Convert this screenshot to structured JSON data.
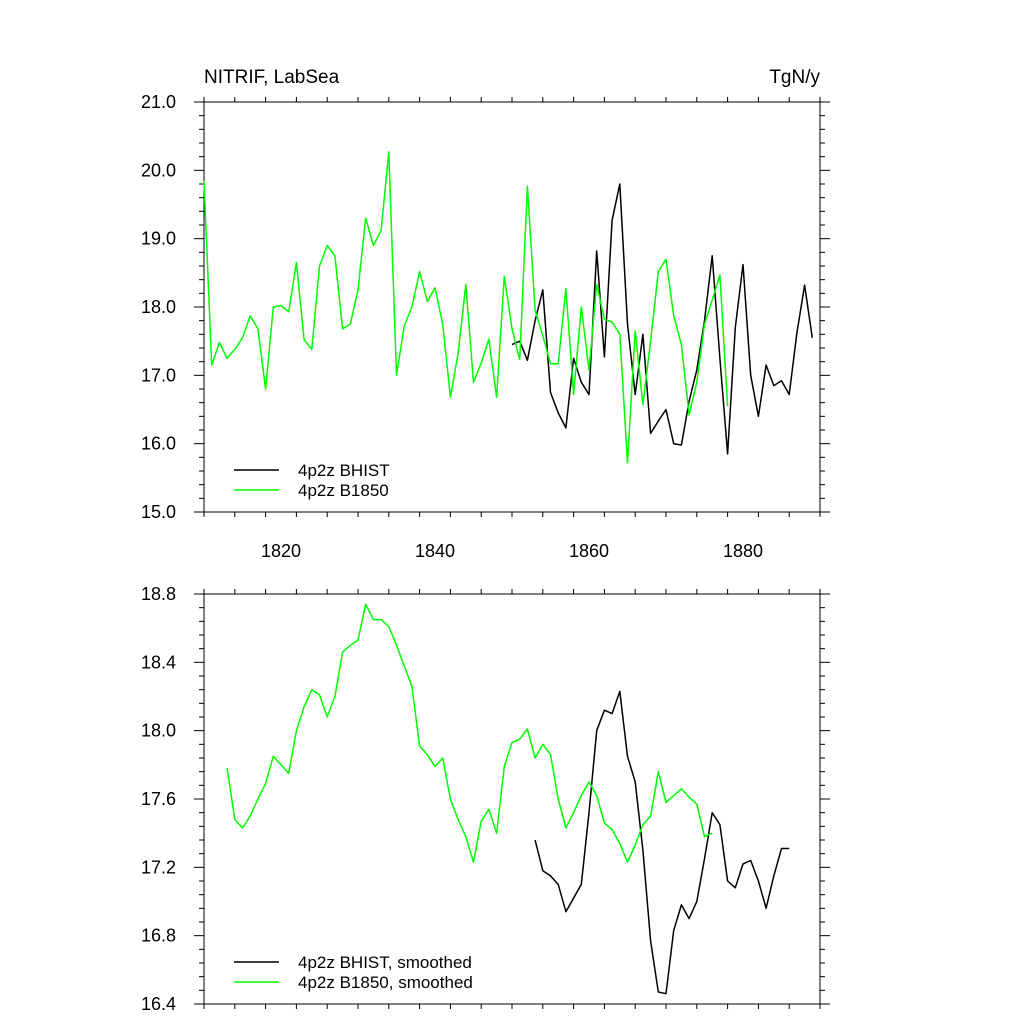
{
  "title_left": "NITRIF, LabSea",
  "title_right": "TgN/y",
  "chart_data": [
    {
      "type": "line",
      "xlim": [
        1810,
        1890
      ],
      "ylim": [
        15.0,
        21.0
      ],
      "x_ticks": [
        "1820",
        "1840",
        "1860",
        "1880"
      ],
      "y_ticks": [
        "15.0",
        "16.0",
        "17.0",
        "18.0",
        "19.0",
        "20.0",
        "21.0"
      ],
      "legend_position": "bottom-left",
      "series": [
        {
          "name": "4p2z BHIST",
          "color": "#000000",
          "x": [
            1850,
            1851,
            1852,
            1853,
            1854,
            1855,
            1856,
            1857,
            1858,
            1859,
            1860,
            1861,
            1862,
            1863,
            1864,
            1865,
            1866,
            1867,
            1868,
            1869,
            1870,
            1871,
            1872,
            1873,
            1874,
            1875,
            1876,
            1877,
            1878,
            1879,
            1880,
            1881,
            1882,
            1883,
            1884,
            1885,
            1886,
            1887,
            1888,
            1889
          ],
          "y": [
            17.45,
            17.5,
            17.22,
            17.8,
            18.25,
            16.75,
            16.45,
            16.23,
            17.25,
            16.9,
            16.72,
            18.82,
            17.27,
            19.27,
            19.8,
            17.75,
            16.72,
            17.6,
            16.15,
            16.33,
            16.5,
            16.0,
            15.98,
            16.62,
            17.08,
            17.8,
            18.75,
            17.25,
            15.85,
            17.7,
            18.62,
            17.0,
            16.4,
            17.15,
            16.85,
            16.92,
            16.72,
            17.62,
            18.32,
            17.55
          ]
        },
        {
          "name": "4p2z B1850",
          "color": "#00ff00",
          "x": [
            1810,
            1811,
            1812,
            1813,
            1814,
            1815,
            1816,
            1817,
            1818,
            1819,
            1820,
            1821,
            1822,
            1823,
            1824,
            1825,
            1826,
            1827,
            1828,
            1829,
            1830,
            1831,
            1832,
            1833,
            1834,
            1835,
            1836,
            1837,
            1838,
            1839,
            1840,
            1841,
            1842,
            1843,
            1844,
            1845,
            1846,
            1847,
            1848,
            1849,
            1850,
            1851,
            1852,
            1853,
            1854,
            1855,
            1856,
            1857,
            1858,
            1859,
            1860,
            1861,
            1862,
            1863,
            1864,
            1865,
            1866,
            1867,
            1868,
            1869,
            1870,
            1871,
            1872,
            1873,
            1874,
            1875,
            1876,
            1877,
            1878
          ],
          "y": [
            19.85,
            17.15,
            17.48,
            17.25,
            17.38,
            17.55,
            17.87,
            17.68,
            16.8,
            18.0,
            18.02,
            17.93,
            18.65,
            17.52,
            17.38,
            18.6,
            18.9,
            18.75,
            17.68,
            17.75,
            18.25,
            19.3,
            18.9,
            19.12,
            20.27,
            17.0,
            17.72,
            18.0,
            18.52,
            18.08,
            18.28,
            17.75,
            16.68,
            17.32,
            18.33,
            16.9,
            17.18,
            17.53,
            16.68,
            18.45,
            17.68,
            17.23,
            19.77,
            17.95,
            17.58,
            17.17,
            17.17,
            18.27,
            16.72,
            18.0,
            17.08,
            18.33,
            17.82,
            17.78,
            17.6,
            15.72,
            17.65,
            16.57,
            17.5,
            18.52,
            18.7,
            17.87,
            17.45,
            16.42,
            16.9,
            17.75,
            18.1,
            18.47,
            16.55
          ]
        }
      ]
    },
    {
      "type": "line",
      "xlim": [
        1810,
        1890
      ],
      "ylim": [
        16.4,
        18.8
      ],
      "x_ticks": [],
      "y_ticks": [
        "16.4",
        "16.8",
        "17.2",
        "17.6",
        "18.0",
        "18.4",
        "18.8"
      ],
      "legend_position": "bottom-left",
      "series": [
        {
          "name": "4p2z BHIST, smoothed",
          "color": "#000000",
          "x": [
            1853,
            1854,
            1855,
            1856,
            1857,
            1858,
            1859,
            1860,
            1861,
            1862,
            1863,
            1864,
            1865,
            1866,
            1867,
            1868,
            1869,
            1870,
            1871,
            1872,
            1873,
            1874,
            1875,
            1876,
            1877,
            1878,
            1879,
            1880,
            1881,
            1882,
            1883,
            1884,
            1885,
            1886
          ],
          "y": [
            17.36,
            17.18,
            17.15,
            17.1,
            16.94,
            17.02,
            17.1,
            17.52,
            18.0,
            18.12,
            18.1,
            18.23,
            17.85,
            17.7,
            17.3,
            16.77,
            16.47,
            16.46,
            16.83,
            16.98,
            16.9,
            17.0,
            17.25,
            17.52,
            17.45,
            17.12,
            17.08,
            17.22,
            17.24,
            17.12,
            16.96,
            17.15,
            17.31,
            17.31
          ]
        },
        {
          "name": "4p2z B1850, smoothed",
          "color": "#00ff00",
          "x": [
            1813,
            1814,
            1815,
            1816,
            1817,
            1818,
            1819,
            1820,
            1821,
            1822,
            1823,
            1824,
            1825,
            1826,
            1827,
            1828,
            1829,
            1830,
            1831,
            1832,
            1833,
            1834,
            1835,
            1836,
            1837,
            1838,
            1839,
            1840,
            1841,
            1842,
            1843,
            1844,
            1845,
            1846,
            1847,
            1848,
            1849,
            1850,
            1851,
            1852,
            1853,
            1854,
            1855,
            1856,
            1857,
            1858,
            1859,
            1860,
            1861,
            1862,
            1863,
            1864,
            1865,
            1866,
            1867,
            1868,
            1869,
            1870,
            1871,
            1872,
            1873,
            1874,
            1875,
            1876
          ],
          "y": [
            17.78,
            17.48,
            17.43,
            17.5,
            17.6,
            17.69,
            17.85,
            17.8,
            17.75,
            18.0,
            18.14,
            18.24,
            18.21,
            18.08,
            18.2,
            18.46,
            18.5,
            18.53,
            18.74,
            18.65,
            18.65,
            18.61,
            18.5,
            18.38,
            18.26,
            17.91,
            17.86,
            17.79,
            17.84,
            17.6,
            17.48,
            17.38,
            17.23,
            17.47,
            17.54,
            17.4,
            17.79,
            17.93,
            17.95,
            18.01,
            17.84,
            17.92,
            17.86,
            17.6,
            17.43,
            17.52,
            17.62,
            17.7,
            17.62,
            17.46,
            17.42,
            17.34,
            17.23,
            17.33,
            17.45,
            17.5,
            17.76,
            17.58,
            17.62,
            17.66,
            17.61,
            17.57,
            17.38,
            17.4
          ]
        }
      ]
    }
  ]
}
